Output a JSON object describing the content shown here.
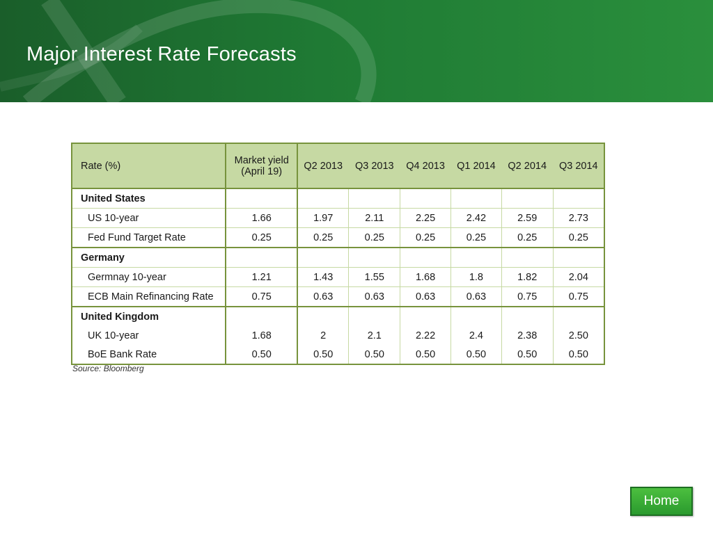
{
  "slide": {
    "title": "Major Interest Rate Forecasts",
    "banner_color": "#1f7a34",
    "source": "Source: Bloomberg",
    "home_label": "Home"
  },
  "table": {
    "headers": {
      "rate": "Rate (%)",
      "market_line1": "Market yield",
      "market_line2": "(April 19)",
      "q2_2013": "Q2 2013",
      "q3_2013": "Q3 2013",
      "q4_2013": "Q4 2013",
      "q1_2014": "Q1 2014",
      "q2_2014": "Q2 2014",
      "q3_2014": "Q3 2014"
    },
    "groups": {
      "us": {
        "name": "United States",
        "rows": [
          {
            "label": "US 10-year",
            "values": [
              "1.66",
              "1.97",
              "2.11",
              "2.25",
              "2.42",
              "2.59",
              "2.73"
            ]
          },
          {
            "label": "Fed Fund Target Rate",
            "values": [
              "0.25",
              "0.25",
              "0.25",
              "0.25",
              "0.25",
              "0.25",
              "0.25"
            ]
          }
        ]
      },
      "de": {
        "name": "Germany",
        "rows": [
          {
            "label": "Germnay 10-year",
            "values": [
              "1.21",
              "1.43",
              "1.55",
              "1.68",
              "1.8",
              "1.82",
              "2.04"
            ]
          },
          {
            "label": "ECB Main Refinancing Rate",
            "values": [
              "0.75",
              "0.63",
              "0.63",
              "0.63",
              "0.63",
              "0.75",
              "0.75"
            ]
          }
        ]
      },
      "uk": {
        "name": "United Kingdom",
        "rows": [
          {
            "label": "UK 10-year",
            "values": [
              "1.68",
              "2",
              "2.1",
              "2.22",
              "2.4",
              "2.38",
              "2.50"
            ]
          },
          {
            "label": "BoE Bank Rate",
            "values": [
              "0.50",
              "0.50",
              "0.50",
              "0.50",
              "0.50",
              "0.50",
              "0.50"
            ]
          }
        ]
      }
    }
  }
}
